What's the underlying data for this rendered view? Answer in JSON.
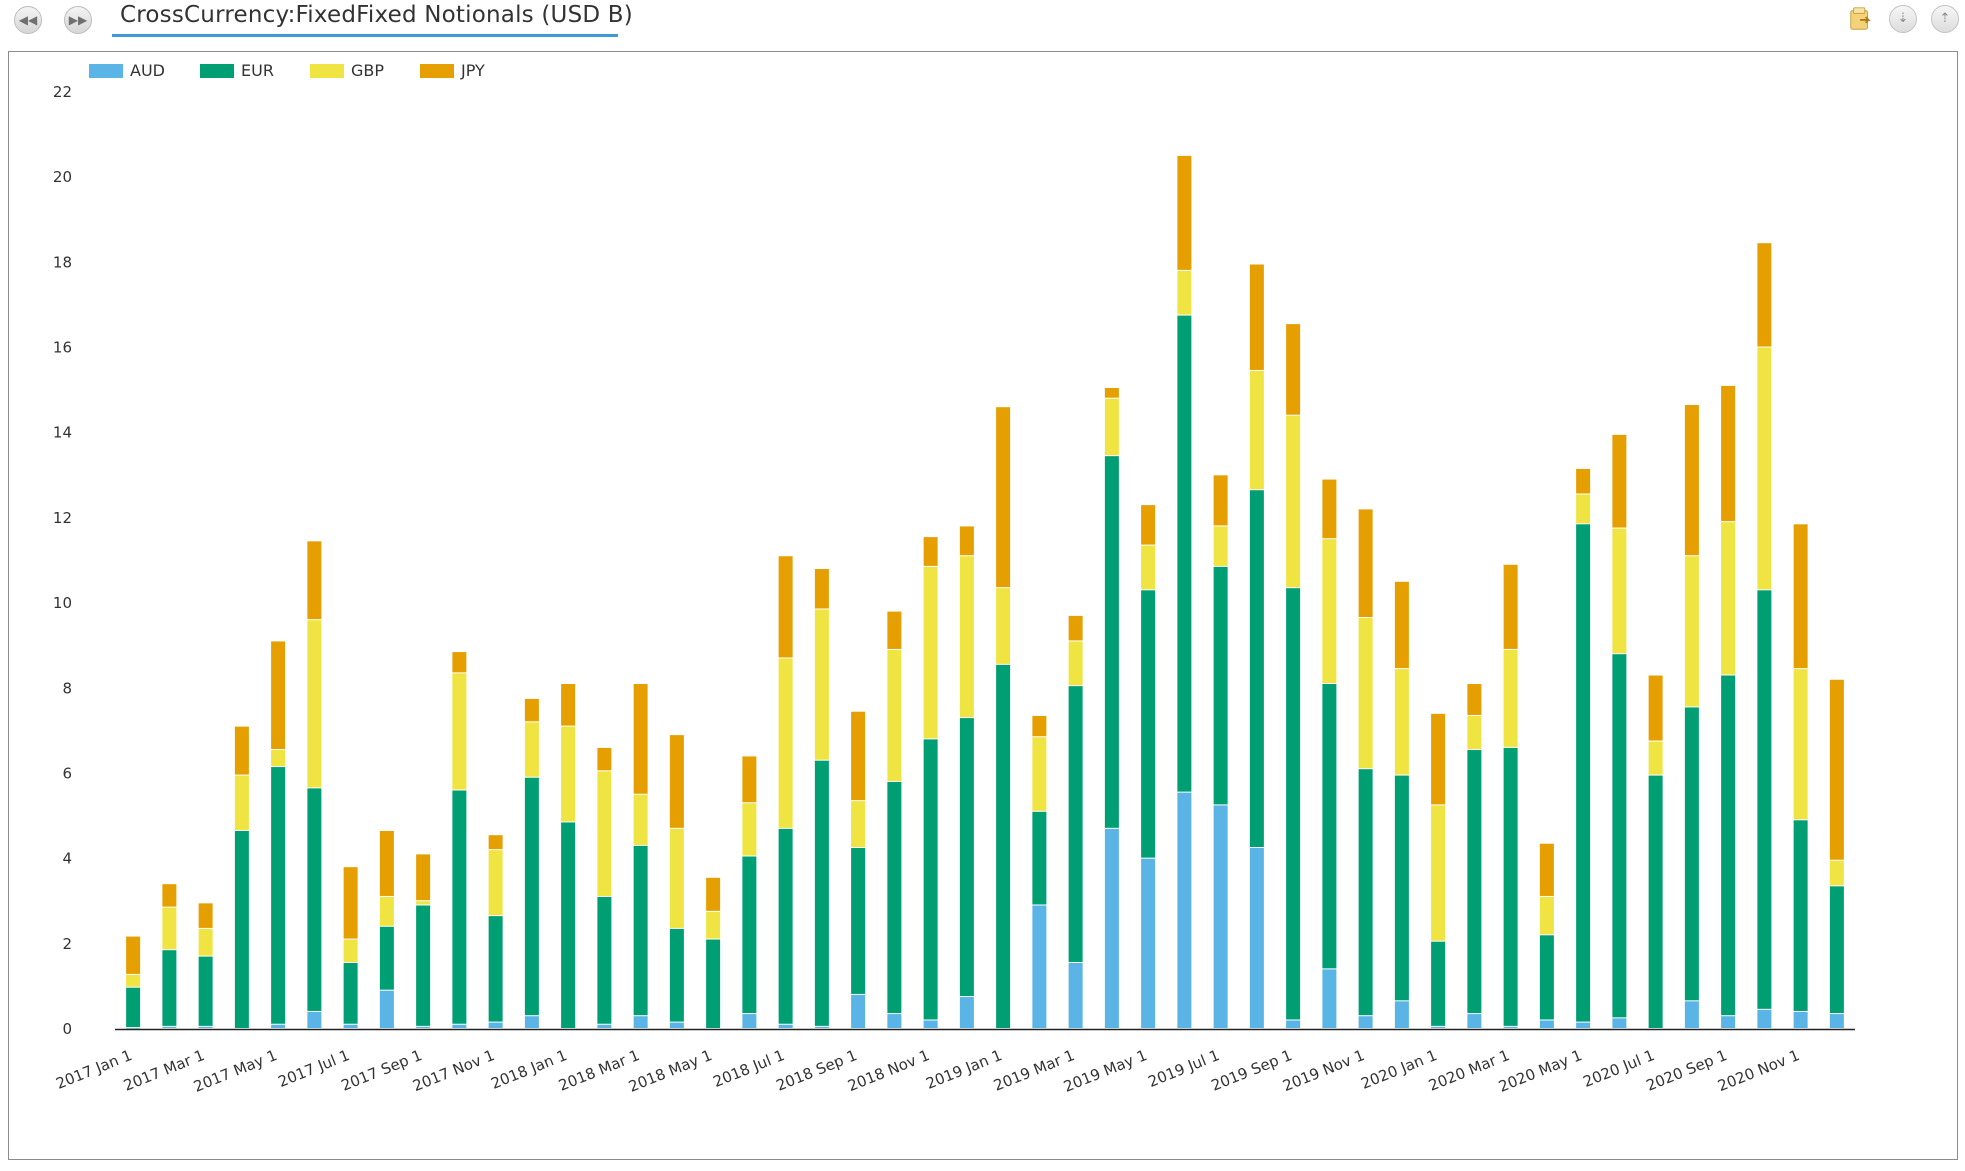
{
  "header": {
    "title": "CrossCurrency:FixedFixed Notionals (USD B)",
    "prev_icon": "rewind-icon",
    "next_icon": "fast-forward-icon",
    "export_icon": "export-folder-icon",
    "collapse_icon": "chevron-down-double-icon",
    "expand_icon": "chevron-up-double-icon"
  },
  "chart_data": {
    "type": "bar",
    "stacked": true,
    "title": "CrossCurrency:FixedFixed Notionals (USD B)",
    "legend_position": "top-left",
    "ylim": [
      0,
      22
    ],
    "yticks": [
      0,
      2,
      4,
      6,
      8,
      10,
      12,
      14,
      16,
      18,
      20,
      22
    ],
    "x_tick_labels": [
      "2017 Jan 1",
      "2017 Mar 1",
      "2017 May 1",
      "2017 Jul 1",
      "2017 Sep 1",
      "2017 Nov 1",
      "2018 Jan 1",
      "2018 Mar 1",
      "2018 May 1",
      "2018 Jul 1",
      "2018 Sep 1",
      "2018 Nov 1",
      "2019 Jan 1",
      "2019 Mar 1",
      "2019 May 1",
      "2019 Jul 1",
      "2019 Sep 1",
      "2019 Nov 1",
      "2020 Jan 1",
      "2020 Mar 1",
      "2020 May 1",
      "2020 Jul 1",
      "2020 Sep 1",
      "2020 Nov 1"
    ],
    "categories": [
      "2017-01",
      "2017-02",
      "2017-03",
      "2017-04",
      "2017-05",
      "2017-06",
      "2017-07",
      "2017-08",
      "2017-09",
      "2017-10",
      "2017-11",
      "2017-12",
      "2018-01",
      "2018-02",
      "2018-03",
      "2018-04",
      "2018-05",
      "2018-06",
      "2018-07",
      "2018-08",
      "2018-09",
      "2018-10",
      "2018-11",
      "2018-12",
      "2019-01",
      "2019-02",
      "2019-03",
      "2019-04",
      "2019-05",
      "2019-06",
      "2019-07",
      "2019-08",
      "2019-09",
      "2019-10",
      "2019-11",
      "2019-12",
      "2020-01",
      "2020-02",
      "2020-03",
      "2020-04",
      "2020-05",
      "2020-06",
      "2020-07",
      "2020-08",
      "2020-09",
      "2020-10",
      "2020-11",
      "2020-12"
    ],
    "series": [
      {
        "name": "AUD",
        "color": "#5ab4e5",
        "values": [
          0.02,
          0.05,
          0.05,
          0,
          0.1,
          0.4,
          0.1,
          0.9,
          0.05,
          0.1,
          0.15,
          0.3,
          0,
          0.1,
          0.3,
          0.15,
          0,
          0.35,
          0.1,
          0.05,
          0.8,
          0.35,
          0.2,
          0.75,
          0,
          2.9,
          1.55,
          4.7,
          4.0,
          5.55,
          5.25,
          4.25,
          0.2,
          1.4,
          0.3,
          0.65,
          0.05,
          0.35,
          0.05,
          0.2,
          0.15,
          0.25,
          0,
          0.65,
          0.3,
          0.45,
          0.4,
          0.35
        ]
      },
      {
        "name": "EUR",
        "color": "#009e73",
        "values": [
          0.95,
          1.8,
          1.65,
          4.65,
          6.05,
          5.25,
          1.45,
          1.5,
          2.85,
          5.5,
          2.5,
          5.6,
          4.85,
          3.0,
          4.0,
          2.2,
          2.1,
          3.7,
          4.6,
          6.25,
          3.45,
          5.45,
          6.6,
          6.55,
          8.55,
          2.2,
          6.5,
          8.75,
          6.3,
          11.2,
          5.6,
          8.4,
          10.15,
          6.7,
          5.8,
          5.3,
          2.0,
          6.2,
          6.55,
          2.0,
          11.7,
          8.55,
          5.95,
          6.9,
          8.0,
          9.85,
          4.5,
          3.0
        ]
      },
      {
        "name": "GBP",
        "color": "#f0e442",
        "values": [
          0.3,
          1.0,
          0.65,
          1.3,
          0.4,
          3.95,
          0.55,
          0.7,
          0.1,
          2.75,
          1.55,
          1.3,
          2.25,
          2.95,
          1.2,
          2.35,
          0.65,
          1.25,
          4.0,
          3.55,
          1.1,
          3.1,
          4.05,
          3.8,
          1.8,
          1.75,
          1.05,
          1.35,
          1.05,
          1.05,
          0.95,
          2.8,
          4.05,
          3.4,
          3.55,
          2.5,
          3.2,
          0.8,
          2.3,
          0.9,
          0.7,
          2.95,
          0.8,
          3.55,
          3.6,
          5.7,
          3.55,
          0.6
        ]
      },
      {
        "name": "JPY",
        "color": "#e69f00",
        "values": [
          0.9,
          0.55,
          0.6,
          1.15,
          2.55,
          1.85,
          1.7,
          1.55,
          1.1,
          0.5,
          0.35,
          0.55,
          1.0,
          0.55,
          2.6,
          2.2,
          0.8,
          1.1,
          2.4,
          0.95,
          2.1,
          0.9,
          0.7,
          0.7,
          4.25,
          0.5,
          0.6,
          0.25,
          0.95,
          2.7,
          1.2,
          2.5,
          2.15,
          1.4,
          2.55,
          2.05,
          2.15,
          0.75,
          2.0,
          1.25,
          0.6,
          2.2,
          1.55,
          3.55,
          3.2,
          2.45,
          3.4,
          4.25
        ]
      }
    ]
  }
}
